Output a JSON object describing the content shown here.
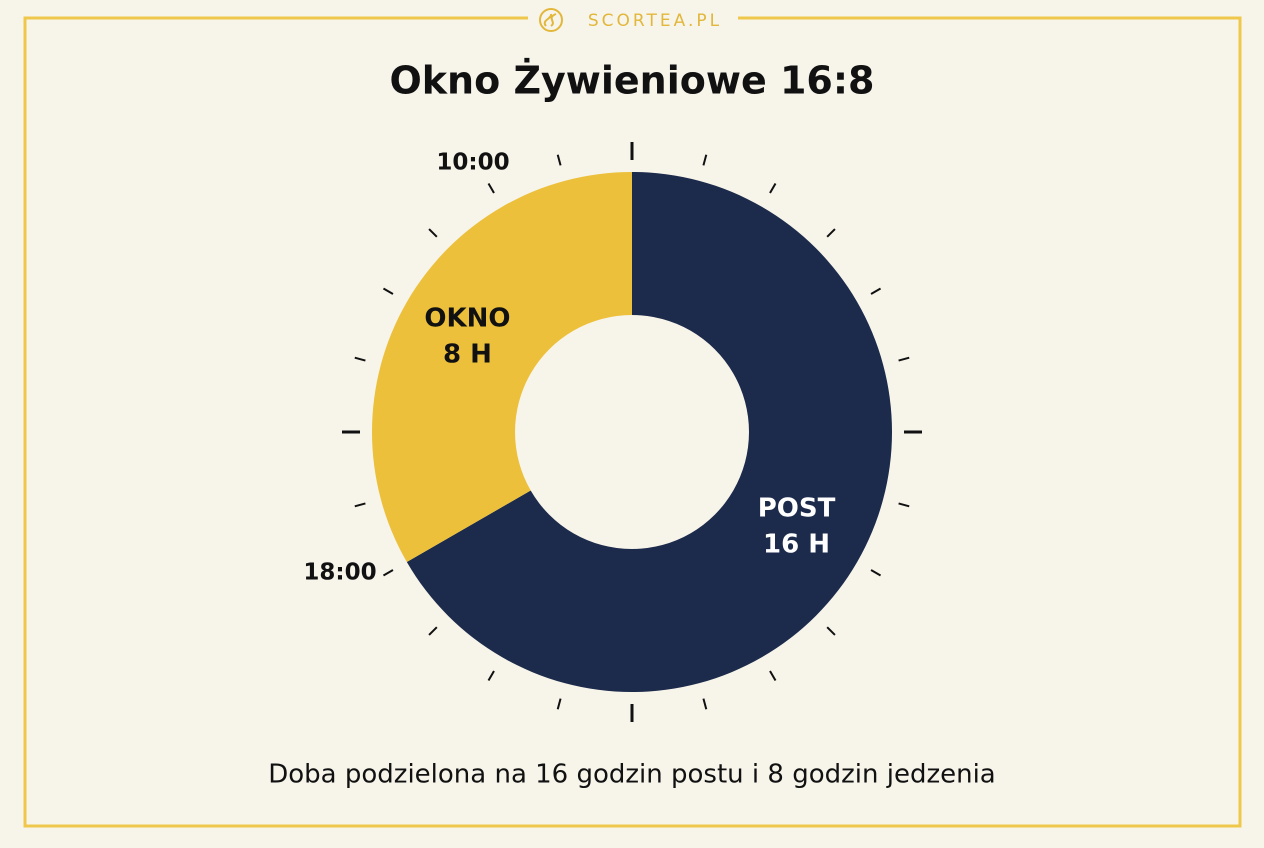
{
  "header": {
    "brand": "SCORTEA.PL"
  },
  "chart_data": {
    "type": "donut",
    "title": "Okno Żywieniowe 16:8",
    "subtitle": "Doba podzielona na 16 godzin postu i 8 godzin jedzenia",
    "categories": [
      "POST",
      "OKNO"
    ],
    "values": [
      16,
      8
    ],
    "value_labels": [
      "16 H",
      "8 H"
    ],
    "colors": [
      "#1c2a4b",
      "#ecc03a"
    ],
    "annotations": [
      "10:00",
      "18:00"
    ]
  }
}
